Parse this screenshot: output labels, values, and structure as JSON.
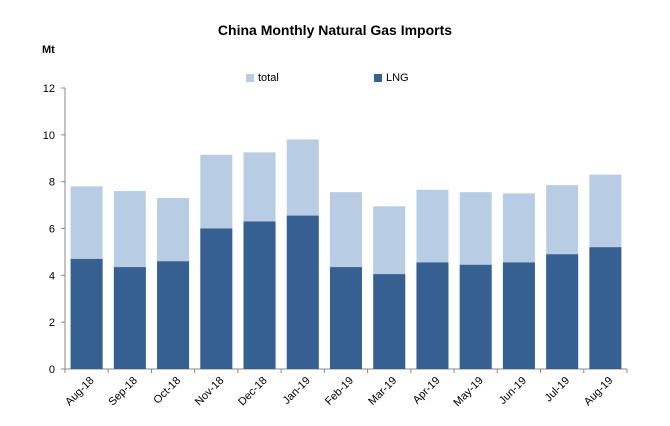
{
  "chart_data": {
    "type": "bar",
    "stacked": true,
    "title": "China Monthly Natural Gas  Imports",
    "ylabel": "Mt",
    "xlabel": "",
    "ylim": [
      0,
      12
    ],
    "yticks": [
      0,
      2,
      4,
      6,
      8,
      10,
      12
    ],
    "grid": false,
    "legend_placement": "top",
    "categories": [
      "Aug-18",
      "Sep-18",
      "Oct-18",
      "Nov-18",
      "Dec-18",
      "Jan-19",
      "Feb-19",
      "Mar-19",
      "Apr-19",
      "May-19",
      "Jun-19",
      "Jul-19",
      "Aug-19"
    ],
    "series": [
      {
        "name": "total",
        "color": "#b8cce4",
        "values": [
          7.8,
          7.6,
          7.3,
          9.15,
          9.25,
          9.8,
          7.55,
          6.95,
          7.65,
          7.55,
          7.5,
          7.85,
          8.3
        ]
      },
      {
        "name": "LNG",
        "color": "#366092",
        "values": [
          4.7,
          4.35,
          4.6,
          6.0,
          6.3,
          6.55,
          4.35,
          4.05,
          4.55,
          4.45,
          4.55,
          4.9,
          5.2
        ]
      }
    ]
  }
}
